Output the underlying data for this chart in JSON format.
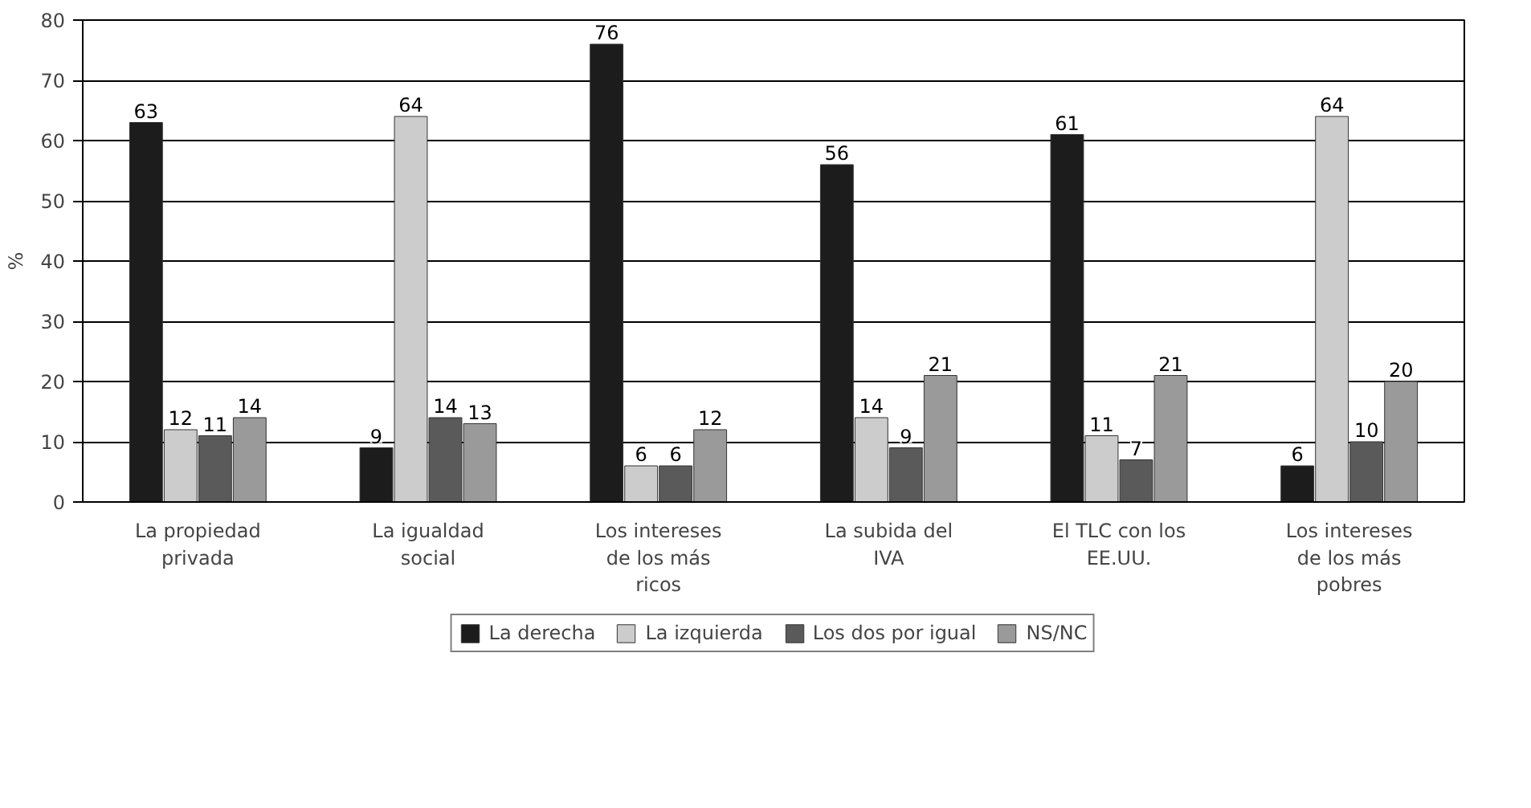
{
  "chart_data": {
    "type": "bar",
    "ylabel": "%",
    "categories": [
      "La propiedad privada",
      "La igualdad social",
      "Los intereses de los más ricos",
      "La subida del IVA",
      "El TLC con los EE.UU.",
      "Los intereses de los más pobres"
    ],
    "series": [
      {
        "name": "La derecha",
        "color": "#1c1c1c",
        "values": [
          63,
          9,
          76,
          56,
          61,
          6
        ]
      },
      {
        "name": "La izquierda",
        "color": "#cccccc",
        "values": [
          12,
          64,
          6,
          14,
          11,
          64
        ]
      },
      {
        "name": "Los dos por igual",
        "color": "#5a5a5a",
        "values": [
          11,
          14,
          6,
          9,
          7,
          10
        ]
      },
      {
        "name": "NS/NC",
        "color": "#9a9a9a",
        "values": [
          14,
          13,
          12,
          21,
          21,
          20
        ]
      }
    ],
    "ylim": [
      0,
      80
    ],
    "yticks": [
      0,
      10,
      20,
      30,
      40,
      50,
      60,
      70,
      80
    ],
    "grid": "y",
    "legend": "bottom",
    "data_labels": true
  }
}
